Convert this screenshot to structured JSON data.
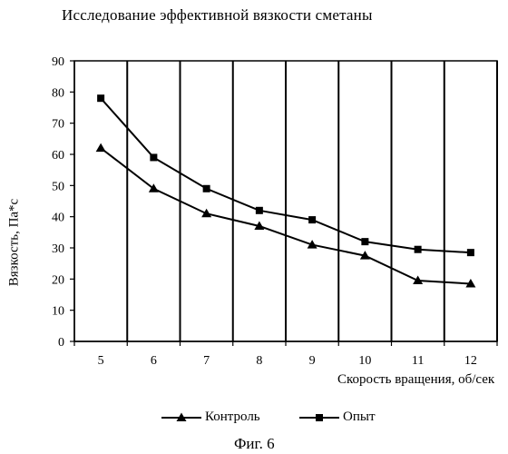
{
  "chart_data": {
    "type": "line",
    "title": "Исследование эффективной вязкости  сметаны",
    "xlabel": "Скорость вращения, об/сек",
    "ylabel": "Вязкость, Па*с",
    "x": [
      5,
      6,
      7,
      8,
      9,
      10,
      11,
      12
    ],
    "ylim": [
      0,
      90
    ],
    "yticks": [
      0,
      10,
      20,
      30,
      40,
      50,
      60,
      70,
      80,
      90
    ],
    "grid": "vertical",
    "legend_position": "bottom",
    "series": [
      {
        "name": "Контроль",
        "marker": "triangle",
        "color": "#000000",
        "values": [
          62,
          49,
          41,
          37,
          31,
          27.5,
          19.5,
          18.5
        ]
      },
      {
        "name": "Опыт",
        "marker": "square",
        "color": "#000000",
        "values": [
          78,
          59,
          49,
          42,
          39,
          32,
          29.5,
          28.5
        ]
      }
    ]
  },
  "caption": "Фиг. 6"
}
